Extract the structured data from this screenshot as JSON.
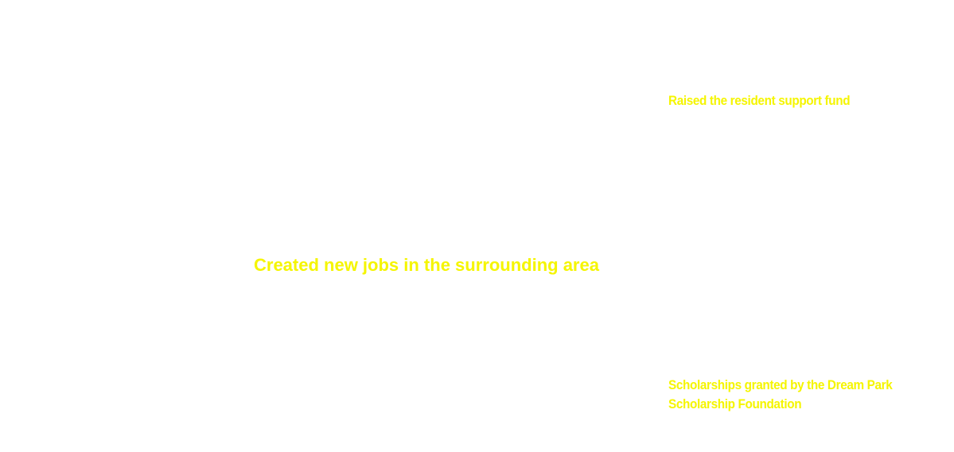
{
  "stats": {
    "jobs": {
      "label": "Created new jobs in the surrounding area"
    },
    "fund": {
      "label": "Raised the resident support fund"
    },
    "scholarships": {
      "line1": "Scholarships granted by the Dream Park",
      "line2": "Scholarship Foundation"
    }
  },
  "colors": {
    "background": "#ffffff",
    "text_accent": "#f5f500"
  }
}
